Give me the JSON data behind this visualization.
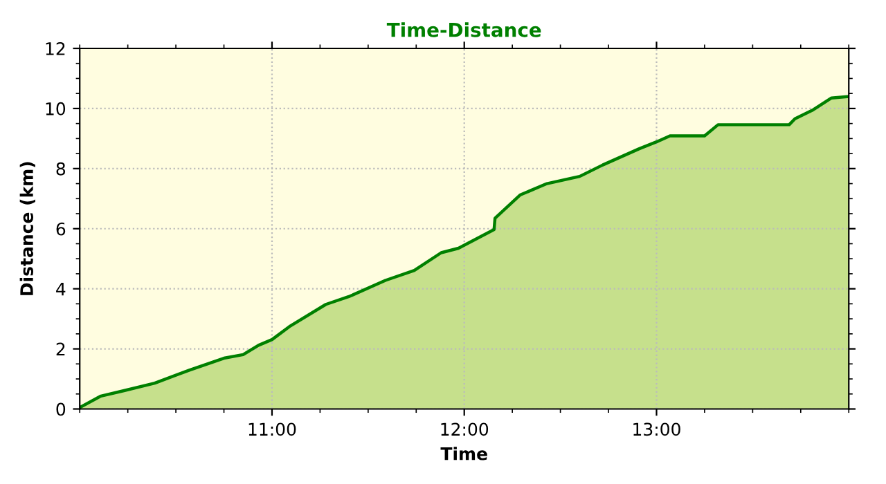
{
  "chart_data": {
    "type": "area",
    "title": "Time-Distance",
    "xlabel": "Time",
    "ylabel": "Distance (km)",
    "xlim": [
      10,
      14
    ],
    "ylim": [
      0,
      12
    ],
    "xticks": [
      {
        "value": 11,
        "label": "11:00"
      },
      {
        "value": 12,
        "label": "12:00"
      },
      {
        "value": 13,
        "label": "13:00"
      }
    ],
    "yticks": [
      0,
      2,
      4,
      6,
      8,
      10,
      12
    ],
    "grid": true,
    "series": [
      {
        "color": "#008000",
        "x": [
          10.0,
          10.11,
          10.23,
          10.39,
          10.57,
          10.75,
          10.85,
          10.93,
          11.0,
          11.09,
          11.28,
          11.4,
          11.59,
          11.74,
          11.88,
          11.97,
          12.155,
          12.16,
          12.29,
          12.43,
          12.6,
          12.72,
          12.91,
          13.0,
          13.07,
          13.25,
          13.32,
          13.69,
          13.72,
          13.81,
          13.91,
          14.0
        ],
        "values": [
          0.05,
          0.43,
          0.61,
          0.86,
          1.29,
          1.69,
          1.81,
          2.12,
          2.31,
          2.74,
          3.48,
          3.74,
          4.28,
          4.61,
          5.2,
          5.35,
          5.97,
          6.35,
          7.12,
          7.5,
          7.74,
          8.12,
          8.66,
          8.89,
          9.09,
          9.09,
          9.46,
          9.46,
          9.66,
          9.94,
          10.35,
          10.4
        ]
      }
    ]
  }
}
